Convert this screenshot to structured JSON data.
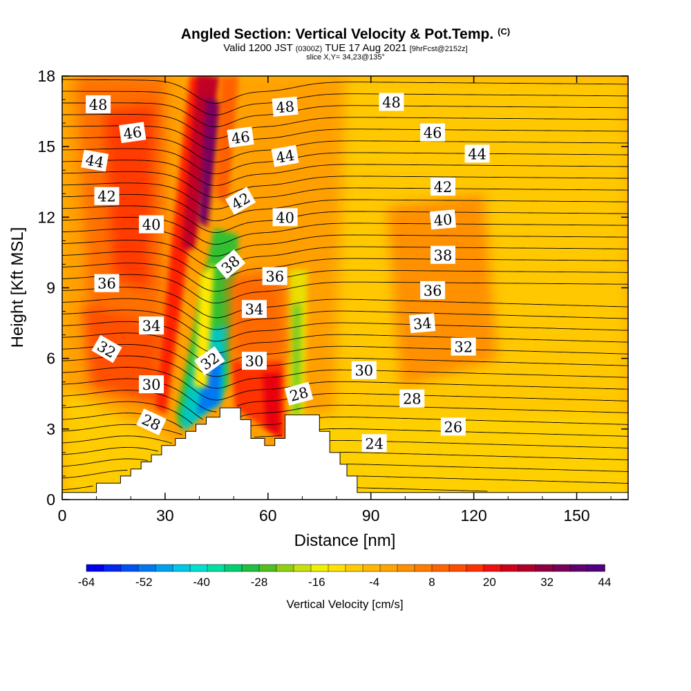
{
  "header": {
    "title": "Angled Section: Vertical Velocity & Pot.Temp.",
    "title_suffix": "(C)",
    "subtitle_pre": "Valid 1200 JST",
    "subtitle_small1": "(0300Z)",
    "subtitle_mid": "TUE 17 Aug 2021",
    "subtitle_small2": "[9hrFcst@2152z]",
    "slice": "slice X,Y= 34,23@135°"
  },
  "chart_data": {
    "type": "heatmap",
    "xlabel": "Distance [nm]",
    "ylabel": "Height [Kft MSL]",
    "xlim": [
      0,
      165
    ],
    "ylim": [
      0,
      18
    ],
    "x_ticks": [
      "0",
      "30",
      "60",
      "90",
      "120",
      "150"
    ],
    "y_ticks": [
      "0",
      "3",
      "6",
      "9",
      "12",
      "15",
      "18"
    ],
    "colorbar": {
      "title": "Vertical Velocity [cm/s]",
      "tick_labels": [
        "-64",
        "-52",
        "-40",
        "-28",
        "-16",
        "-4",
        "8",
        "20",
        "32",
        "44"
      ],
      "colors": [
        "#0000ee",
        "#0028f0",
        "#0050f4",
        "#0078f4",
        "#00a0f0",
        "#00c8e8",
        "#00e0d0",
        "#00e0a0",
        "#00d070",
        "#20c040",
        "#50c020",
        "#90d010",
        "#c8e010",
        "#f0f000",
        "#ffe000",
        "#ffcc00",
        "#ffb800",
        "#ffa400",
        "#ff9000",
        "#ff7c00",
        "#ff6400",
        "#ff4c00",
        "#ff3000",
        "#ee1010",
        "#d00018",
        "#b00028",
        "#900040",
        "#780058",
        "#600070",
        "#500080"
      ]
    },
    "contour_variable": "potential temperature (C)",
    "contour_labels": [
      {
        "text": "48",
        "x": 10.5,
        "y": 16.8,
        "rot": 0
      },
      {
        "text": "46",
        "x": 20.5,
        "y": 15.6,
        "rot": -8
      },
      {
        "text": "44",
        "x": 9.5,
        "y": 14.4,
        "rot": 10
      },
      {
        "text": "42",
        "x": 13,
        "y": 12.9,
        "rot": 0
      },
      {
        "text": "40",
        "x": 26,
        "y": 11.7,
        "rot": 0
      },
      {
        "text": "36",
        "x": 13,
        "y": 9.2,
        "rot": 0
      },
      {
        "text": "34",
        "x": 26,
        "y": 7.4,
        "rot": 0
      },
      {
        "text": "32",
        "x": 13,
        "y": 6.4,
        "rot": 30
      },
      {
        "text": "30",
        "x": 26,
        "y": 4.9,
        "rot": 0
      },
      {
        "text": "28",
        "x": 26,
        "y": 3.3,
        "rot": 25
      },
      {
        "text": "48",
        "x": 65,
        "y": 16.7,
        "rot": -5
      },
      {
        "text": "46",
        "x": 52,
        "y": 15.4,
        "rot": -8
      },
      {
        "text": "44",
        "x": 65,
        "y": 14.6,
        "rot": -10
      },
      {
        "text": "42",
        "x": 52,
        "y": 12.7,
        "rot": -30
      },
      {
        "text": "40",
        "x": 65,
        "y": 12.0,
        "rot": 0
      },
      {
        "text": "38",
        "x": 49,
        "y": 10.0,
        "rot": -40
      },
      {
        "text": "36",
        "x": 62,
        "y": 9.5,
        "rot": 0
      },
      {
        "text": "34",
        "x": 56,
        "y": 8.1,
        "rot": 0
      },
      {
        "text": "32",
        "x": 43,
        "y": 5.9,
        "rot": -35
      },
      {
        "text": "30",
        "x": 56,
        "y": 5.9,
        "rot": 0
      },
      {
        "text": "28",
        "x": 69,
        "y": 4.5,
        "rot": -15
      },
      {
        "text": "48",
        "x": 96,
        "y": 16.9,
        "rot": 0
      },
      {
        "text": "46",
        "x": 108,
        "y": 15.6,
        "rot": 0
      },
      {
        "text": "44",
        "x": 121,
        "y": 14.7,
        "rot": 0
      },
      {
        "text": "42",
        "x": 111,
        "y": 13.3,
        "rot": 0
      },
      {
        "text": "40",
        "x": 111,
        "y": 11.9,
        "rot": -5
      },
      {
        "text": "38",
        "x": 111,
        "y": 10.4,
        "rot": 0
      },
      {
        "text": "36",
        "x": 108,
        "y": 8.9,
        "rot": 0
      },
      {
        "text": "34",
        "x": 105,
        "y": 7.5,
        "rot": -5
      },
      {
        "text": "32",
        "x": 117,
        "y": 6.5,
        "rot": 0
      },
      {
        "text": "30",
        "x": 88,
        "y": 5.5,
        "rot": 0
      },
      {
        "text": "28",
        "x": 102,
        "y": 4.3,
        "rot": 0
      },
      {
        "text": "26",
        "x": 114,
        "y": 3.1,
        "rot": 0
      },
      {
        "text": "24",
        "x": 91,
        "y": 2.4,
        "rot": 0
      }
    ],
    "terrain_profile": [
      [
        0,
        0.3
      ],
      [
        10,
        0.3
      ],
      [
        10,
        0.7
      ],
      [
        17,
        0.7
      ],
      [
        17,
        1.0
      ],
      [
        20,
        1.0
      ],
      [
        20,
        1.3
      ],
      [
        23,
        1.3
      ],
      [
        23,
        1.6
      ],
      [
        26,
        1.6
      ],
      [
        26,
        1.9
      ],
      [
        29,
        1.9
      ],
      [
        29,
        2.3
      ],
      [
        33,
        2.3
      ],
      [
        33,
        2.6
      ],
      [
        36,
        2.6
      ],
      [
        36,
        2.9
      ],
      [
        39,
        2.9
      ],
      [
        39,
        3.2
      ],
      [
        42,
        3.2
      ],
      [
        42,
        3.5
      ],
      [
        46,
        3.5
      ],
      [
        46,
        3.9
      ],
      [
        52,
        3.9
      ],
      [
        52,
        3.4
      ],
      [
        55,
        3.4
      ],
      [
        55,
        2.6
      ],
      [
        59,
        2.6
      ],
      [
        59,
        2.3
      ],
      [
        62,
        2.3
      ],
      [
        62,
        2.6
      ],
      [
        65,
        2.6
      ],
      [
        65,
        3.6
      ],
      [
        75,
        3.6
      ],
      [
        75,
        2.9
      ],
      [
        78,
        2.9
      ],
      [
        78,
        2.0
      ],
      [
        81,
        2.0
      ],
      [
        81,
        1.5
      ],
      [
        83,
        1.5
      ],
      [
        83,
        1.0
      ],
      [
        86,
        1.0
      ],
      [
        86,
        0.3
      ],
      [
        165,
        0.3
      ]
    ]
  }
}
